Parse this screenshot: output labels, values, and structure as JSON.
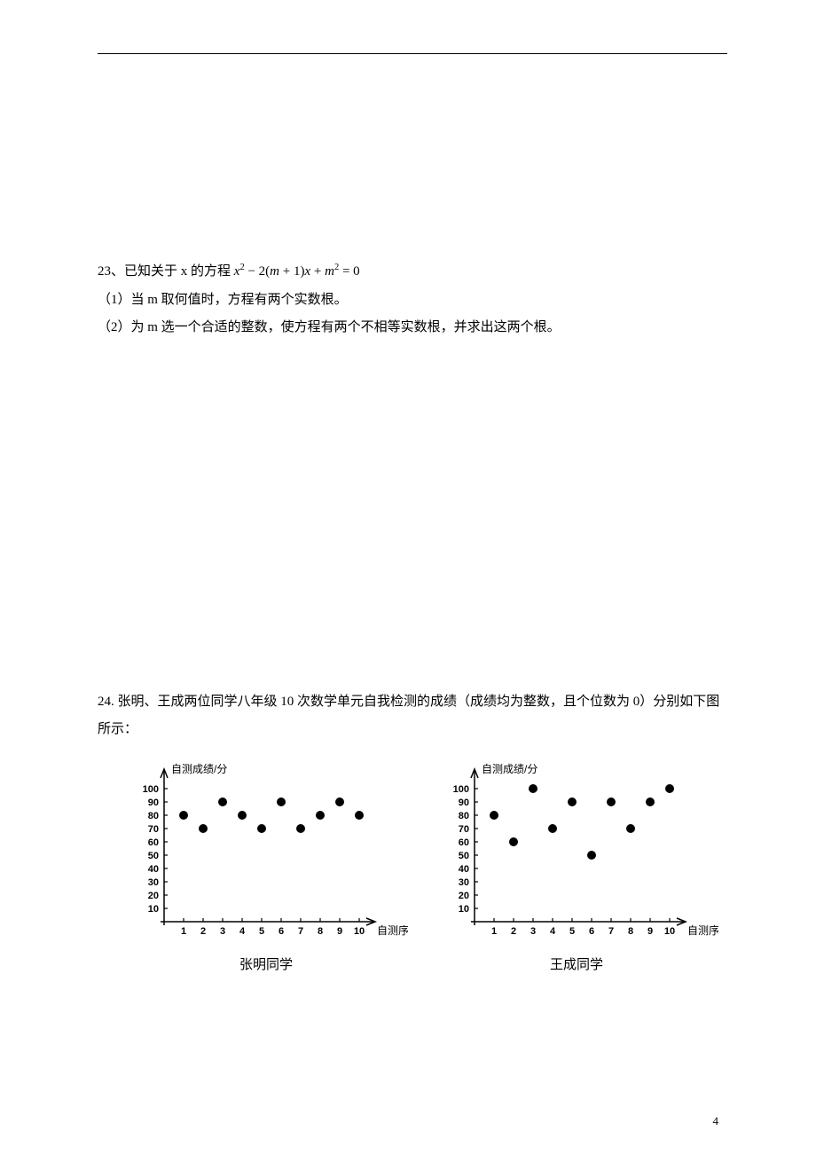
{
  "page_number": "4",
  "q23": {
    "number": "23、",
    "stem_pre": "已知关于 x 的方程 ",
    "part1": "（1）当 m 取何值时，方程有两个实数根。",
    "part2": "（2）为 m 选一个合适的整数，使方程有两个不相等实数根，并求出这两个根。"
  },
  "q24": {
    "number": "24. ",
    "stem": "张明、王成两位同学八年级 10 次数学单元自我检测的成绩（成绩均为整数，且个位数为 0）分别如下图所示：",
    "chart1_caption": "张明同学",
    "chart2_caption": "王成同学",
    "y_axis_label": "自测成绩/分",
    "x_axis_label": "自测序号",
    "y_ticks": [
      10,
      20,
      30,
      40,
      50,
      60,
      70,
      80,
      90,
      100
    ],
    "x_ticks": [
      1,
      2,
      3,
      4,
      5,
      6,
      7,
      8,
      9,
      10
    ],
    "chart_colors": {
      "axis": "#000000",
      "dot": "#000000",
      "bg": "#ffffff"
    },
    "dot_radius": 5,
    "chart1_data": [
      {
        "x": 1,
        "y": 80
      },
      {
        "x": 2,
        "y": 70
      },
      {
        "x": 3,
        "y": 90
      },
      {
        "x": 4,
        "y": 80
      },
      {
        "x": 5,
        "y": 70
      },
      {
        "x": 6,
        "y": 90
      },
      {
        "x": 7,
        "y": 70
      },
      {
        "x": 8,
        "y": 80
      },
      {
        "x": 9,
        "y": 90
      },
      {
        "x": 10,
        "y": 80
      }
    ],
    "chart2_data": [
      {
        "x": 1,
        "y": 80
      },
      {
        "x": 2,
        "y": 60
      },
      {
        "x": 3,
        "y": 100
      },
      {
        "x": 4,
        "y": 70
      },
      {
        "x": 5,
        "y": 90
      },
      {
        "x": 6,
        "y": 50
      },
      {
        "x": 7,
        "y": 90
      },
      {
        "x": 8,
        "y": 70
      },
      {
        "x": 9,
        "y": 90
      },
      {
        "x": 10,
        "y": 100
      }
    ]
  }
}
